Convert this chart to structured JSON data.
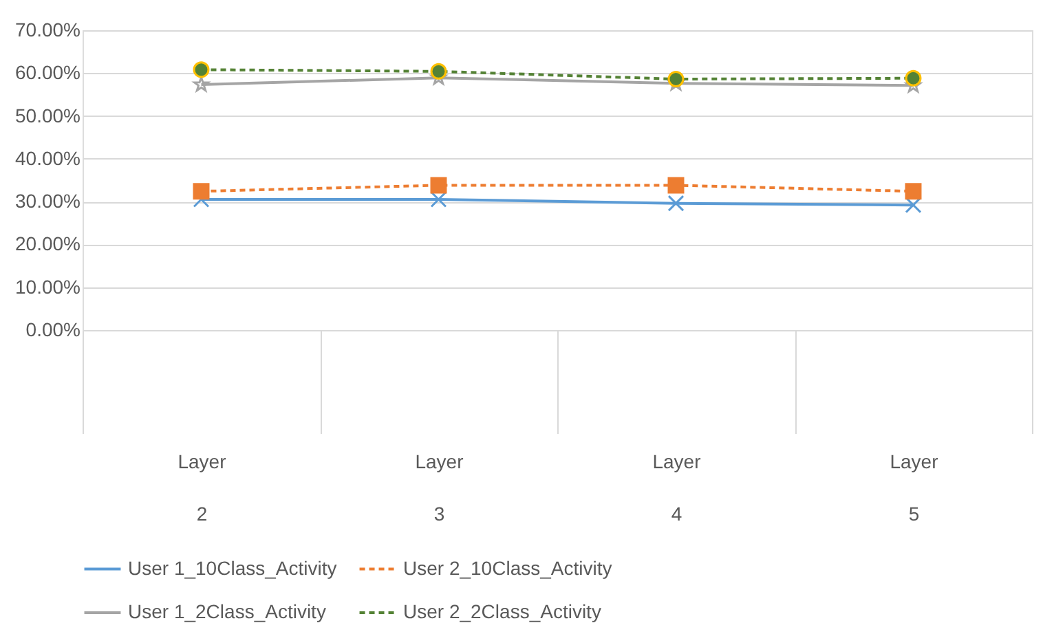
{
  "chart_data": {
    "type": "line",
    "categories": [
      "Layer 2",
      "Layer 3",
      "Layer 4",
      "Layer 5"
    ],
    "series": [
      {
        "name": "User 1_10Class_Activity",
        "color": "#5b9bd5",
        "values": [
          30.5,
          30.5,
          29.6,
          29.2
        ],
        "marker": "cross",
        "line_style": "solid"
      },
      {
        "name": "User 2_10Class_Activity",
        "color": "#ed7d31",
        "values": [
          32.4,
          33.8,
          33.8,
          32.4
        ],
        "marker": "square",
        "line_style": "dashed"
      },
      {
        "name": "User 1_2Class_Activity",
        "color": "#a5a5a5",
        "values": [
          57.3,
          58.9,
          57.6,
          57.1
        ],
        "marker": "star",
        "line_style": "solid"
      },
      {
        "name": "User 2_2Class_Activity",
        "color": "#548235",
        "values": [
          60.8,
          60.4,
          58.6,
          58.8
        ],
        "marker": "circle",
        "line_style": "dashed"
      }
    ],
    "ylim": [
      0,
      70
    ],
    "yticks": [
      {
        "value": 0,
        "label": "0.00%"
      },
      {
        "value": 10,
        "label": "10.00%"
      },
      {
        "value": 20,
        "label": "20.00%"
      },
      {
        "value": 30,
        "label": "30.00%"
      },
      {
        "value": 40,
        "label": "40.00%"
      },
      {
        "value": 50,
        "label": "50.00%"
      },
      {
        "value": 60,
        "label": "60.00%"
      },
      {
        "value": 70,
        "label": "70.00%"
      }
    ],
    "grid": "y",
    "legend": "bottom"
  }
}
